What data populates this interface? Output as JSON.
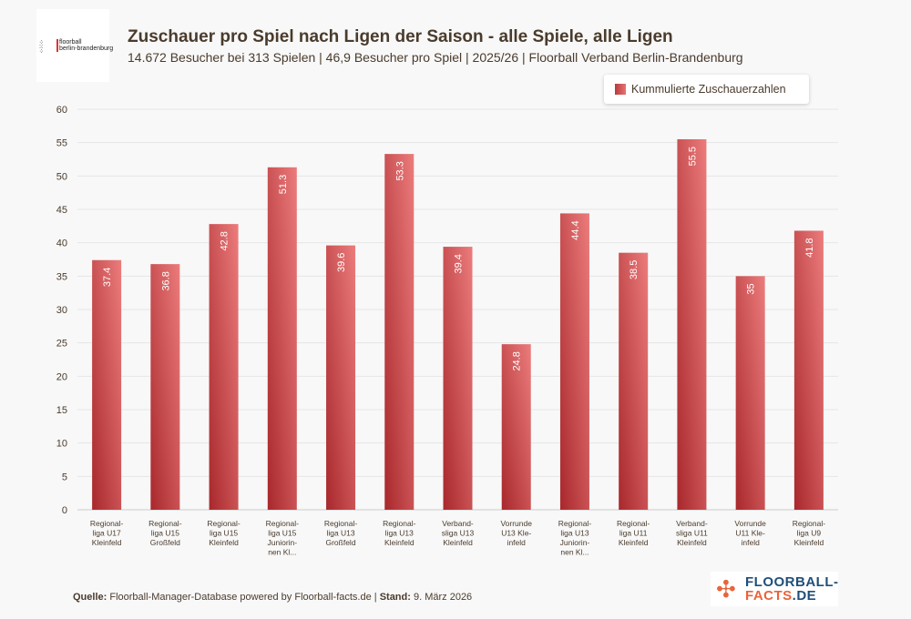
{
  "header": {
    "logo_text": "floorball berlin-brandenburg",
    "title": "Zuschauer pro Spiel nach Ligen der Saison - alle Spiele, alle Ligen",
    "subtitle": "14.672 Besucher bei 313 Spielen | 46,9 Besucher pro Spiel | 2025/26 | Floorball Verband Berlin-Brandenburg"
  },
  "footer": {
    "source_label": "Quelle:",
    "source_text": " Floorball-Manager-Database powered by Floorball-facts.de | ",
    "date_label": "Stand:",
    "date_text": " 9. März 2026",
    "brand_logo_line1": "FLOORBALL-",
    "brand_logo_line2a": "FACTS",
    "brand_logo_line2b": ".DE"
  },
  "colors": {
    "bar_dark": "#a8282c",
    "bar_light": "#e97878",
    "text": "#4a3b2c",
    "brand_blue": "#1f4f7a",
    "brand_orange": "#e8643a"
  },
  "chart_data": {
    "type": "bar",
    "title": "Zuschauer pro Spiel nach Ligen der Saison - alle Spiele, alle Ligen",
    "categories": [
      [
        "Regional-",
        "liga U17",
        "Kleinfeld"
      ],
      [
        "Regional-",
        "liga U15",
        "Großfeld"
      ],
      [
        "Regional-",
        "liga U15",
        "Kleinfeld"
      ],
      [
        "Regional-",
        "liga U15",
        "Juniorin-",
        "nen Kl..."
      ],
      [
        "Regional-",
        "liga U13",
        "Großfeld"
      ],
      [
        "Regional-",
        "liga U13",
        "Kleinfeld"
      ],
      [
        "Verband-",
        "sliga U13",
        "Kleinfeld"
      ],
      [
        "Vorrunde",
        "U13 Kle-",
        "infeld"
      ],
      [
        "Regional-",
        "liga U13",
        "Juniorin-",
        "nen Kl..."
      ],
      [
        "Regional-",
        "liga U11",
        "Kleinfeld"
      ],
      [
        "Verband-",
        "sliga U11",
        "Kleinfeld"
      ],
      [
        "Vorrunde",
        "U11 Kle-",
        "infeld"
      ],
      [
        "Regional-",
        "liga U9",
        "Kleinfeld"
      ]
    ],
    "series": [
      {
        "name": "Kummulierte Zuschauerzahlen",
        "values": [
          37.4,
          36.8,
          42.8,
          51.3,
          39.6,
          53.3,
          39.4,
          24.8,
          44.4,
          38.5,
          55.5,
          35,
          41.8
        ],
        "labels": [
          "37.4",
          "36.8",
          "42.8",
          "51.3",
          "39.6",
          "53.3",
          "39.4",
          "24.8",
          "44.4",
          "38.5",
          "55.5",
          "35",
          "41.8"
        ]
      }
    ],
    "ylim": [
      0,
      60
    ],
    "yticks": [
      "0",
      "5",
      "10",
      "15",
      "20",
      "25",
      "30",
      "35",
      "40",
      "45",
      "50",
      "55",
      "60"
    ],
    "grid": true,
    "legend_position": "top-right"
  }
}
